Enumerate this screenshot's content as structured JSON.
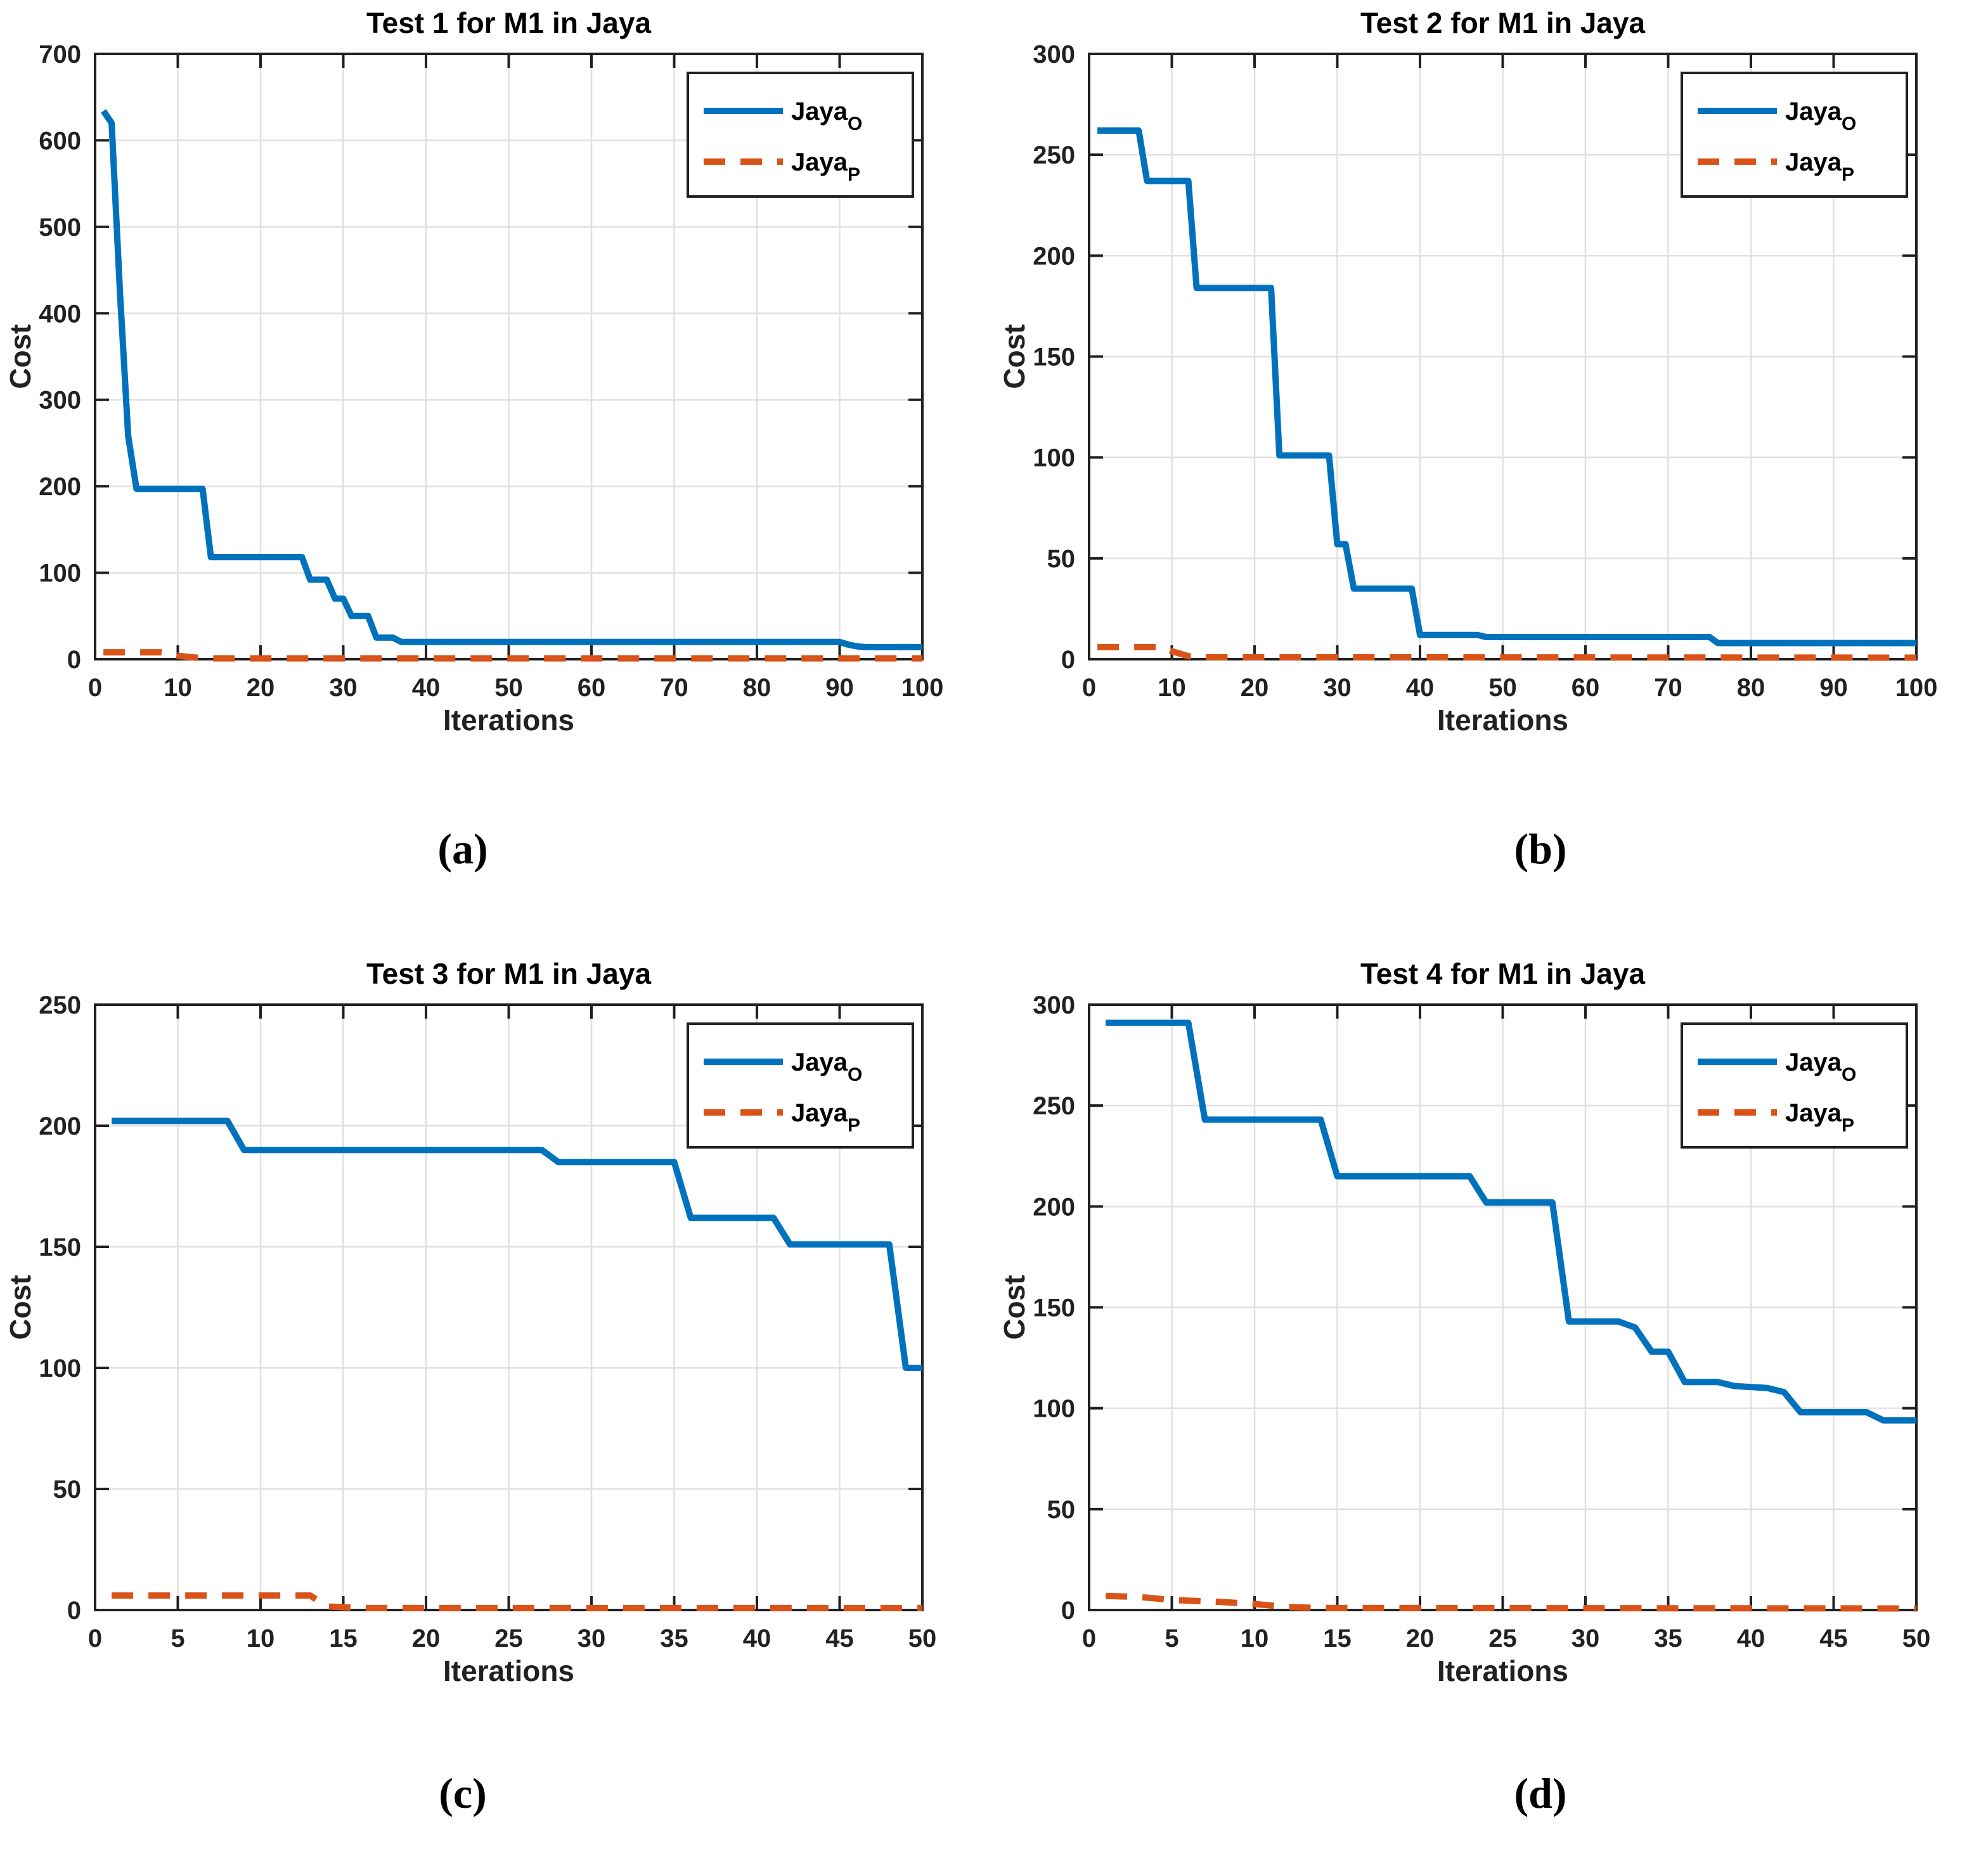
{
  "colors": {
    "blue": "#0072BD",
    "orange": "#D95319",
    "axis": "#202020",
    "grid": "#E0E0E0",
    "background": "#FFFFFF"
  },
  "captions": {
    "a": "(a)",
    "b": "(b)",
    "c": "(c)",
    "d": "(d)"
  },
  "legend": {
    "entries": [
      "Jaya_O",
      "Jaya_P"
    ]
  },
  "chart_data": [
    {
      "type": "line",
      "title": "Test 1 for M1 in Jaya",
      "xlabel": "Iterations",
      "ylabel": "Cost",
      "xlim": [
        0,
        100
      ],
      "ylim": [
        0,
        700
      ],
      "xticks": [
        0,
        10,
        20,
        30,
        40,
        50,
        60,
        70,
        80,
        90,
        100
      ],
      "yticks": [
        0,
        100,
        200,
        300,
        400,
        500,
        600,
        700
      ],
      "grid": true,
      "legend_position": "top-right",
      "series": [
        {
          "name": "Jaya_O",
          "label": "Jaya",
          "sub": "O",
          "color": "blue",
          "dashed": false,
          "points": [
            [
              1,
              634
            ],
            [
              2,
              620
            ],
            [
              3,
              425
            ],
            [
              4,
              258
            ],
            [
              5,
              197
            ],
            [
              13,
              197
            ],
            [
              14,
              118
            ],
            [
              25,
              118
            ],
            [
              26,
              92
            ],
            [
              28,
              92
            ],
            [
              29,
              70
            ],
            [
              30,
              70
            ],
            [
              31,
              50
            ],
            [
              33,
              50
            ],
            [
              34,
              25
            ],
            [
              36,
              25
            ],
            [
              37,
              20
            ],
            [
              90,
              20
            ],
            [
              91,
              17
            ],
            [
              92,
              15
            ],
            [
              93,
              14
            ],
            [
              100,
              14
            ]
          ]
        },
        {
          "name": "Jaya_P",
          "label": "Jaya",
          "sub": "P",
          "color": "orange",
          "dashed": true,
          "points": [
            [
              1,
              8
            ],
            [
              8,
              8
            ],
            [
              9,
              7
            ],
            [
              10,
              4
            ],
            [
              12,
              2
            ],
            [
              14,
              1
            ],
            [
              100,
              1
            ]
          ]
        }
      ]
    },
    {
      "type": "line",
      "title": "Test 2 for M1 in Jaya",
      "xlabel": "Iterations",
      "ylabel": "Cost",
      "xlim": [
        0,
        100
      ],
      "ylim": [
        0,
        300
      ],
      "xticks": [
        0,
        10,
        20,
        30,
        40,
        50,
        60,
        70,
        80,
        90,
        100
      ],
      "yticks": [
        0,
        50,
        100,
        150,
        200,
        250,
        300
      ],
      "grid": true,
      "legend_position": "top-right",
      "series": [
        {
          "name": "Jaya_O",
          "label": "Jaya",
          "sub": "O",
          "color": "blue",
          "dashed": false,
          "points": [
            [
              1,
              262
            ],
            [
              6,
              262
            ],
            [
              7,
              237
            ],
            [
              12,
              237
            ],
            [
              13,
              184
            ],
            [
              22,
              184
            ],
            [
              23,
              101
            ],
            [
              29,
              101
            ],
            [
              30,
              57
            ],
            [
              31,
              57
            ],
            [
              32,
              35
            ],
            [
              39,
              35
            ],
            [
              40,
              12
            ],
            [
              47,
              12
            ],
            [
              48,
              11
            ],
            [
              75,
              11
            ],
            [
              76,
              8
            ],
            [
              100,
              8
            ]
          ]
        },
        {
          "name": "Jaya_P",
          "label": "Jaya",
          "sub": "P",
          "color": "orange",
          "dashed": true,
          "points": [
            [
              1,
              6
            ],
            [
              9,
              6
            ],
            [
              10,
              4
            ],
            [
              12,
              1.5
            ],
            [
              14,
              1
            ],
            [
              100,
              0.8
            ]
          ]
        }
      ]
    },
    {
      "type": "line",
      "title": "Test 3 for M1 in Jaya",
      "xlabel": "Iterations",
      "ylabel": "Cost",
      "xlim": [
        0,
        50
      ],
      "ylim": [
        0,
        250
      ],
      "xticks": [
        0,
        5,
        10,
        15,
        20,
        25,
        30,
        35,
        40,
        45,
        50
      ],
      "yticks": [
        0,
        50,
        100,
        150,
        200,
        250
      ],
      "grid": true,
      "legend_position": "top-right",
      "series": [
        {
          "name": "Jaya_O",
          "label": "Jaya",
          "sub": "O",
          "color": "blue",
          "dashed": false,
          "points": [
            [
              1,
              202
            ],
            [
              8,
              202
            ],
            [
              9,
              190
            ],
            [
              27,
              190
            ],
            [
              28,
              185
            ],
            [
              35,
              185
            ],
            [
              36,
              162
            ],
            [
              41,
              162
            ],
            [
              42,
              151
            ],
            [
              48,
              151
            ],
            [
              49,
              100
            ],
            [
              50,
              100
            ]
          ]
        },
        {
          "name": "Jaya_P",
          "label": "Jaya",
          "sub": "P",
          "color": "orange",
          "dashed": true,
          "points": [
            [
              1,
              6
            ],
            [
              13,
              6
            ],
            [
              14,
              1.5
            ],
            [
              16,
              0.8
            ],
            [
              50,
              0.8
            ]
          ]
        }
      ]
    },
    {
      "type": "line",
      "title": "Test 4 for M1 in Jaya",
      "xlabel": "Iterations",
      "ylabel": "Cost",
      "xlim": [
        0,
        50
      ],
      "ylim": [
        0,
        300
      ],
      "xticks": [
        0,
        5,
        10,
        15,
        20,
        25,
        30,
        35,
        40,
        45,
        50
      ],
      "yticks": [
        0,
        50,
        100,
        150,
        200,
        250,
        300
      ],
      "grid": true,
      "legend_position": "top-right",
      "series": [
        {
          "name": "Jaya_O",
          "label": "Jaya",
          "sub": "O",
          "color": "blue",
          "dashed": false,
          "points": [
            [
              1,
              291
            ],
            [
              6,
              291
            ],
            [
              7,
              243
            ],
            [
              14,
              243
            ],
            [
              15,
              215
            ],
            [
              23,
              215
            ],
            [
              24,
              202
            ],
            [
              28,
              202
            ],
            [
              29,
              143
            ],
            [
              32,
              143
            ],
            [
              33,
              140
            ],
            [
              34,
              128
            ],
            [
              35,
              128
            ],
            [
              36,
              113
            ],
            [
              38,
              113
            ],
            [
              39,
              111
            ],
            [
              41,
              110
            ],
            [
              42,
              108
            ],
            [
              43,
              98
            ],
            [
              47,
              98
            ],
            [
              48,
              94
            ],
            [
              50,
              94
            ]
          ]
        },
        {
          "name": "Jaya_P",
          "label": "Jaya",
          "sub": "P",
          "color": "orange",
          "dashed": true,
          "points": [
            [
              1,
              7
            ],
            [
              3,
              6.5
            ],
            [
              5,
              5
            ],
            [
              8,
              4
            ],
            [
              10,
              3
            ],
            [
              12,
              1.5
            ],
            [
              14,
              1
            ],
            [
              50,
              0.8
            ]
          ]
        }
      ]
    }
  ]
}
